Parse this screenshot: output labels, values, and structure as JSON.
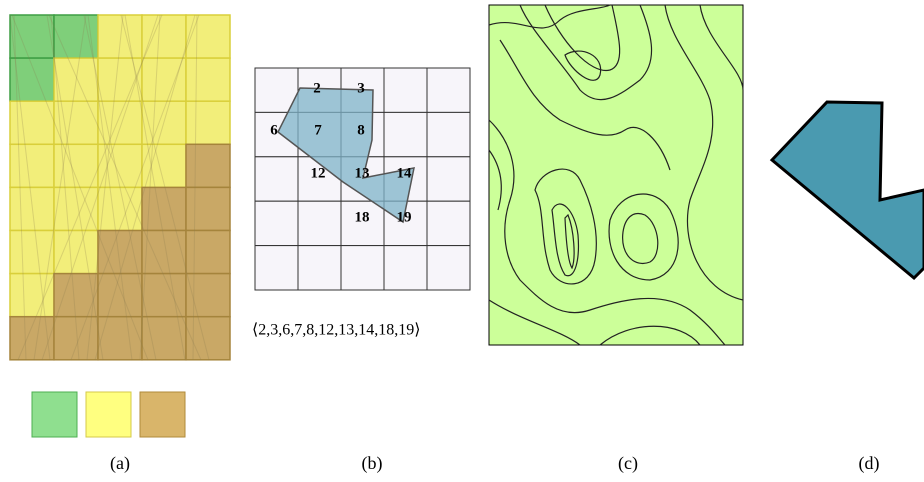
{
  "panel_b": {
    "cells": [
      2,
      3,
      6,
      7,
      8,
      12,
      13,
      14,
      18,
      19
    ],
    "sequence": "⟨2,3,6,7,8,12,13,14,18,19⟩"
  },
  "captions": [
    "(a)",
    "(b)",
    "(c)",
    "(d)"
  ]
}
